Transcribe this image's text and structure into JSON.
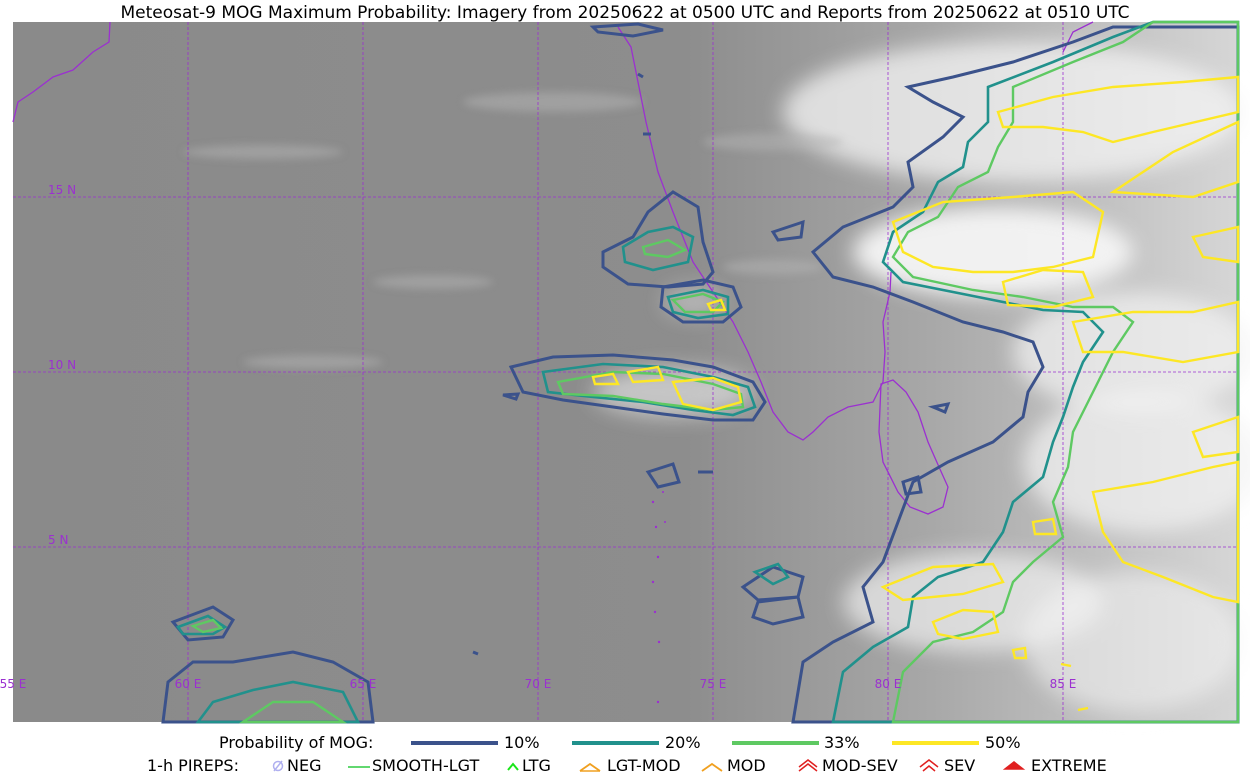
{
  "title": "Meteosat-9 MOG Maximum Probability: Imagery from 20250622 at 0500 UTC and Reports from 20250622 at 0510 UTC",
  "map": {
    "lat_labels": [
      "15 N",
      "10 N",
      "5 N"
    ],
    "lon_labels": [
      "55 E",
      "60 E",
      "65 E",
      "70 E",
      "75 E",
      "80 E",
      "85 E"
    ],
    "contour_colors": {
      "p10": "#3b528b",
      "p20": "#21918c",
      "p33": "#5ec962",
      "p50": "#fde725"
    },
    "grid_color": "#9b30d0"
  },
  "legend": {
    "probability_label": "Probability of MOG:",
    "levels": [
      {
        "label": "10%",
        "color": "#3b528b"
      },
      {
        "label": "20%",
        "color": "#21918c"
      },
      {
        "label": "33%",
        "color": "#5ec962"
      },
      {
        "label": "50%",
        "color": "#fde725"
      }
    ],
    "pireps_label": "1-h PIREPS:",
    "pireps": [
      {
        "label": "NEG",
        "color": "#b0b0f0",
        "icon": "neg-icon"
      },
      {
        "label": "SMOOTH-LGT",
        "color": "#2ecc40",
        "icon": "smooth-lgt-icon"
      },
      {
        "label": "LTG",
        "color": "#19e619",
        "icon": "ltg-icon"
      },
      {
        "label": "LGT-MOD",
        "color": "#f0a020",
        "icon": "lgt-mod-icon"
      },
      {
        "label": "MOD",
        "color": "#f0a020",
        "icon": "mod-icon"
      },
      {
        "label": "MOD-SEV",
        "color": "#e02020",
        "icon": "mod-sev-icon"
      },
      {
        "label": "SEV",
        "color": "#e02020",
        "icon": "sev-icon"
      },
      {
        "label": "EXTREME",
        "color": "#e02020",
        "icon": "extreme-icon"
      }
    ]
  }
}
